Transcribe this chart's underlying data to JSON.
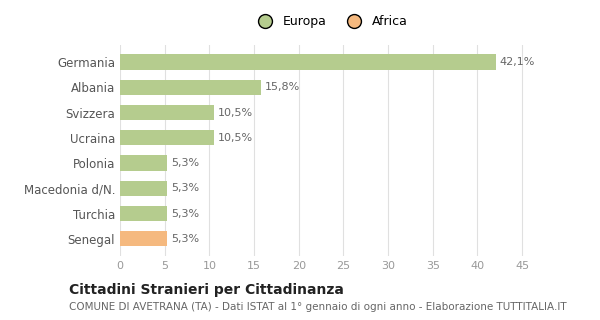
{
  "categories": [
    "Germania",
    "Albania",
    "Svizzera",
    "Ucraina",
    "Polonia",
    "Macedonia d/N.",
    "Turchia",
    "Senegal"
  ],
  "values": [
    42.1,
    15.8,
    10.5,
    10.5,
    5.3,
    5.3,
    5.3,
    5.3
  ],
  "labels": [
    "42,1%",
    "15,8%",
    "10,5%",
    "10,5%",
    "5,3%",
    "5,3%",
    "5,3%",
    "5,3%"
  ],
  "colors": [
    "#b5cc8e",
    "#b5cc8e",
    "#b5cc8e",
    "#b5cc8e",
    "#b5cc8e",
    "#b5cc8e",
    "#b5cc8e",
    "#f5b97f"
  ],
  "legend": [
    {
      "label": "Europa",
      "color": "#b5cc8e"
    },
    {
      "label": "Africa",
      "color": "#f5b97f"
    }
  ],
  "xlim": [
    0,
    47
  ],
  "xticks": [
    0,
    5,
    10,
    15,
    20,
    25,
    30,
    35,
    40,
    45
  ],
  "title": "Cittadini Stranieri per Cittadinanza",
  "subtitle": "COMUNE DI AVETRANA (TA) - Dati ISTAT al 1° gennaio di ogni anno - Elaborazione TUTTITALIA.IT",
  "background_color": "#ffffff",
  "grid_color": "#e0e0e0",
  "bar_height": 0.6,
  "title_fontsize": 10,
  "subtitle_fontsize": 7.5,
  "label_fontsize": 8,
  "tick_fontsize": 8,
  "legend_fontsize": 9,
  "ytick_fontsize": 8.5
}
